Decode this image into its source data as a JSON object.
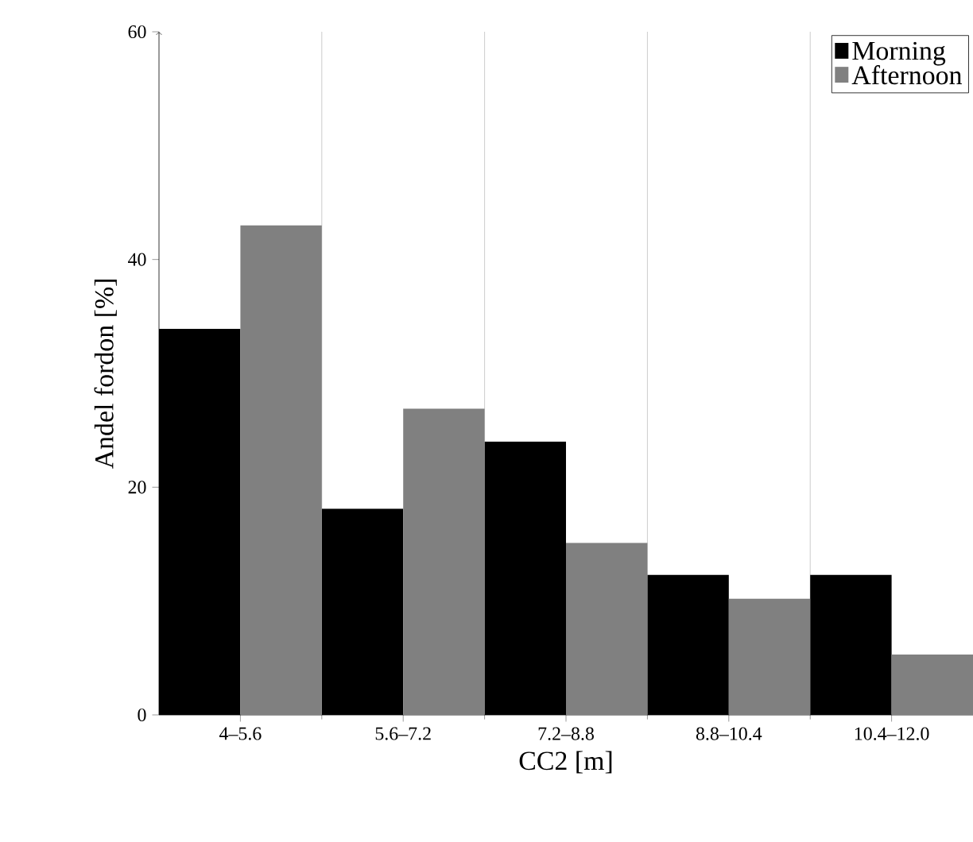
{
  "chart_data": {
    "type": "bar",
    "xlabel": "CC2 [m]",
    "ylabel": "Andel fordon [%]",
    "categories": [
      "4–5.6",
      "5.6–7.2",
      "7.2–8.8",
      "8.8–10.4",
      "10.4–12.0"
    ],
    "series": [
      {
        "name": "Morning",
        "color": "#000000",
        "values": [
          33.9,
          18.1,
          24.0,
          12.3,
          12.3
        ]
      },
      {
        "name": "Afternoon",
        "color": "#808080",
        "values": [
          43.0,
          26.9,
          15.1,
          10.2,
          5.3
        ]
      }
    ],
    "ylim": [
      0,
      60
    ],
    "yticks": [
      0,
      20,
      40,
      60
    ],
    "grid": "x",
    "legend": "top right"
  }
}
